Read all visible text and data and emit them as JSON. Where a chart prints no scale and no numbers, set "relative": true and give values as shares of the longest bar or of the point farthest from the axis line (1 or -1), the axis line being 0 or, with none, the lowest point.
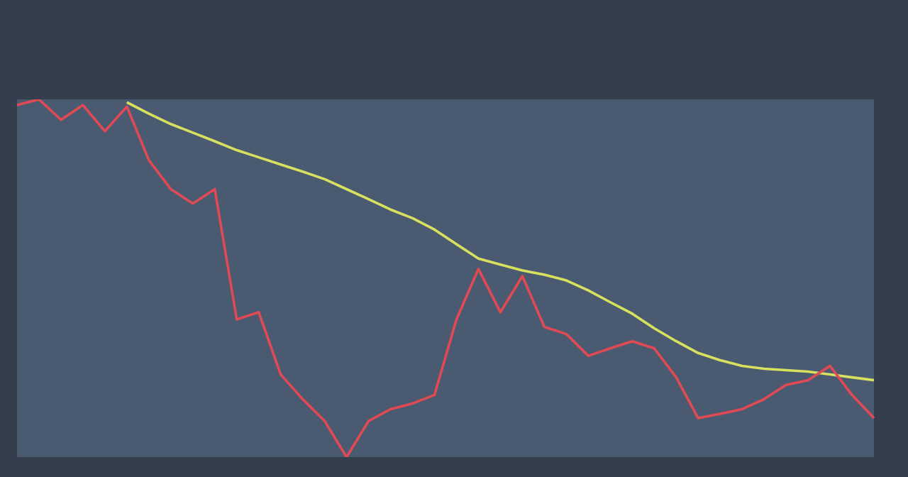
{
  "chart_data": {
    "type": "line",
    "relative": true,
    "legend": false,
    "marker": "none",
    "line_style": "solid",
    "categories": [
      null,
      null,
      null,
      null,
      null,
      null,
      null,
      null,
      null,
      null,
      null,
      null,
      null,
      null,
      null,
      null,
      null,
      null,
      null,
      null,
      null,
      null,
      null,
      null,
      null,
      null,
      null,
      null,
      null,
      null,
      null,
      null,
      null,
      null,
      null,
      null,
      null,
      null,
      null,
      null
    ],
    "series": [
      {
        "color": "#e04a55",
        "values": [
          0.984,
          1,
          0.943,
          0.984,
          0.911,
          0.98,
          0.83,
          0.749,
          0.709,
          0.749,
          0.385,
          0.405,
          0.231,
          0.162,
          0.101,
          0,
          0.101,
          0.134,
          0.15,
          0.174,
          0.385,
          0.526,
          0.405,
          0.506,
          0.364,
          0.344,
          0.283,
          0.304,
          0.324,
          0.304,
          0.223,
          0.109,
          0.121,
          0.134,
          0.162,
          0.202,
          0.215,
          0.255,
          0.174,
          0.109
        ]
      },
      {
        "color": "#d8e060",
        "values": [
          null,
          null,
          null,
          null,
          null,
          0.992,
          0.96,
          0.931,
          0.907,
          0.883,
          0.858,
          0.838,
          0.818,
          0.798,
          0.777,
          0.749,
          0.721,
          0.692,
          0.668,
          0.636,
          0.595,
          0.555,
          0.538,
          0.522,
          0.51,
          0.494,
          0.466,
          0.433,
          0.401,
          0.36,
          0.324,
          0.291,
          0.271,
          0.255,
          0.247,
          0.243,
          0.239,
          0.231,
          0.223,
          0.215
        ]
      }
    ]
  }
}
